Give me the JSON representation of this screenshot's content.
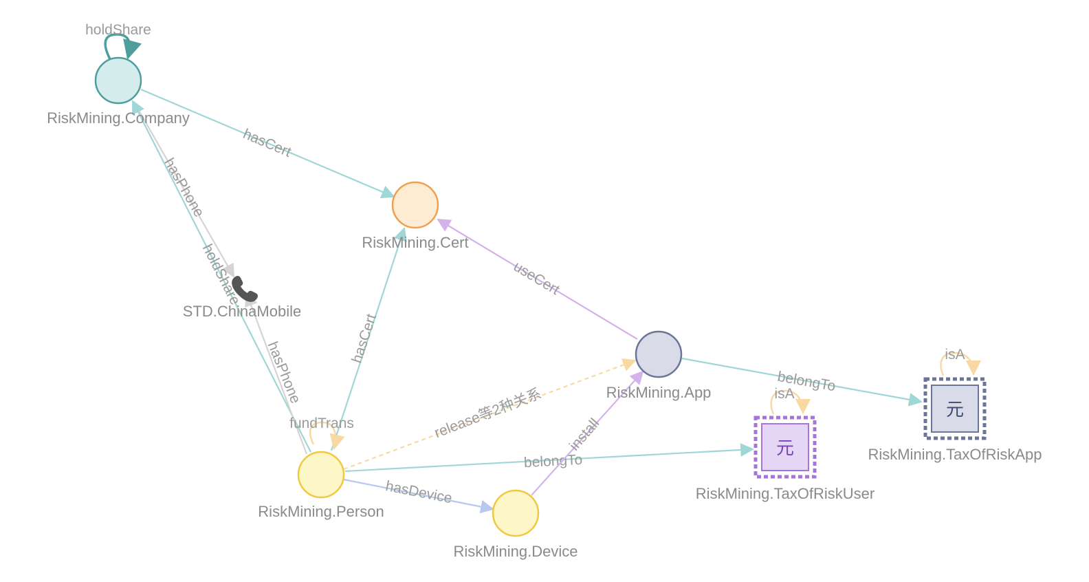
{
  "nodes": {
    "company": {
      "label": "RiskMining.Company",
      "fill": "#d4ecec",
      "stroke": "#4f9d9d"
    },
    "cert": {
      "label": "RiskMining.Cert",
      "fill": "#fdebd3",
      "stroke": "#f0a050"
    },
    "china_mobile": {
      "label": "STD.ChinaMobile",
      "icon": "phone-icon",
      "color": "#555555"
    },
    "app": {
      "label": "RiskMining.App",
      "fill": "#d9dce8",
      "stroke": "#6a7598"
    },
    "person": {
      "label": "RiskMining.Person",
      "fill": "#fdf7c8",
      "stroke": "#f0c842"
    },
    "device": {
      "label": "RiskMining.Device",
      "fill": "#fdf7c8",
      "stroke": "#f0c842"
    },
    "tax_risk_user": {
      "label": "RiskMining.TaxOfRiskUser",
      "glyph": "元",
      "fill": "#e6d6f5",
      "stroke": "#a774dc"
    },
    "tax_risk_app": {
      "label": "RiskMining.TaxOfRiskApp",
      "glyph": "元",
      "fill": "#d9dce8",
      "stroke": "#6a7598"
    }
  },
  "edges": {
    "company_holdshare_self": "holdShare",
    "company_hascert": "hasCert",
    "company_hasphone": "hasPhone",
    "person_holdshare": "holdShare",
    "person_hasphone": "hasPhone",
    "person_hascert": "hasCert",
    "person_fundtrans_self": "fundTrans",
    "person_release": "release等2种关系",
    "person_belongto": "belongTo",
    "person_hasdevice": "hasDevice",
    "device_install": "install",
    "app_usecert": "useCert",
    "app_belongto": "belongTo",
    "tax_user_isa_self": "isA",
    "tax_app_isa_self": "isA"
  },
  "colors": {
    "teal": "#9fd6d6",
    "teal_dark": "#4f9d9d",
    "gray": "#d4d4d4",
    "purple": "#d4b2ec",
    "blue": "#b7c8ef",
    "orange": "#f8d9a3"
  }
}
